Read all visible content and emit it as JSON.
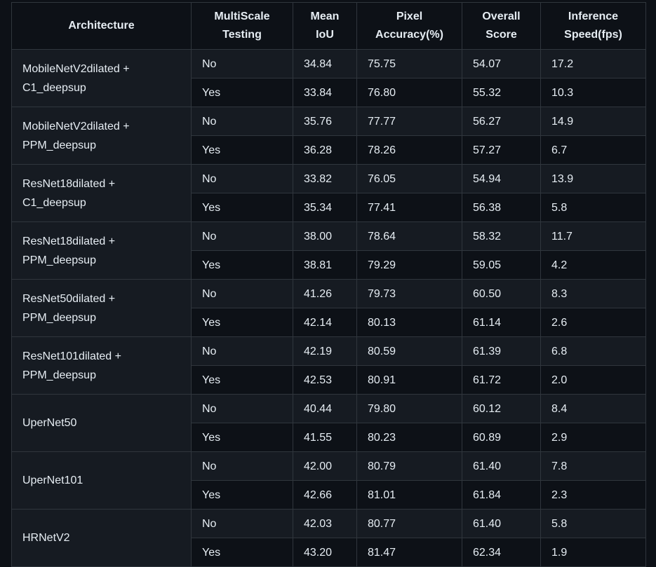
{
  "table": {
    "headers": [
      [
        "Architecture"
      ],
      [
        "MultiScale",
        "Testing"
      ],
      [
        "Mean",
        "IoU"
      ],
      [
        "Pixel",
        "Accuracy(%)"
      ],
      [
        "Overall",
        "Score"
      ],
      [
        "Inference",
        "Speed(fps)"
      ]
    ],
    "groups": [
      {
        "architecture": [
          "MobileNetV2dilated +",
          "C1_deepsup"
        ],
        "rows": [
          {
            "multiscale": "No",
            "mean_iou": "34.84",
            "pixel_accuracy": "75.75",
            "overall_score": "54.07",
            "inference_speed": "17.2"
          },
          {
            "multiscale": "Yes",
            "mean_iou": "33.84",
            "pixel_accuracy": "76.80",
            "overall_score": "55.32",
            "inference_speed": "10.3"
          }
        ]
      },
      {
        "architecture": [
          "MobileNetV2dilated +",
          "PPM_deepsup"
        ],
        "rows": [
          {
            "multiscale": "No",
            "mean_iou": "35.76",
            "pixel_accuracy": "77.77",
            "overall_score": "56.27",
            "inference_speed": "14.9"
          },
          {
            "multiscale": "Yes",
            "mean_iou": "36.28",
            "pixel_accuracy": "78.26",
            "overall_score": "57.27",
            "inference_speed": "6.7"
          }
        ]
      },
      {
        "architecture": [
          "ResNet18dilated +",
          "C1_deepsup"
        ],
        "rows": [
          {
            "multiscale": "No",
            "mean_iou": "33.82",
            "pixel_accuracy": "76.05",
            "overall_score": "54.94",
            "inference_speed": "13.9"
          },
          {
            "multiscale": "Yes",
            "mean_iou": "35.34",
            "pixel_accuracy": "77.41",
            "overall_score": "56.38",
            "inference_speed": "5.8"
          }
        ]
      },
      {
        "architecture": [
          "ResNet18dilated +",
          "PPM_deepsup"
        ],
        "rows": [
          {
            "multiscale": "No",
            "mean_iou": "38.00",
            "pixel_accuracy": "78.64",
            "overall_score": "58.32",
            "inference_speed": "11.7"
          },
          {
            "multiscale": "Yes",
            "mean_iou": "38.81",
            "pixel_accuracy": "79.29",
            "overall_score": "59.05",
            "inference_speed": "4.2"
          }
        ]
      },
      {
        "architecture": [
          "ResNet50dilated +",
          "PPM_deepsup"
        ],
        "rows": [
          {
            "multiscale": "No",
            "mean_iou": "41.26",
            "pixel_accuracy": "79.73",
            "overall_score": "60.50",
            "inference_speed": "8.3"
          },
          {
            "multiscale": "Yes",
            "mean_iou": "42.14",
            "pixel_accuracy": "80.13",
            "overall_score": "61.14",
            "inference_speed": "2.6"
          }
        ]
      },
      {
        "architecture": [
          "ResNet101dilated +",
          "PPM_deepsup"
        ],
        "rows": [
          {
            "multiscale": "No",
            "mean_iou": "42.19",
            "pixel_accuracy": "80.59",
            "overall_score": "61.39",
            "inference_speed": "6.8"
          },
          {
            "multiscale": "Yes",
            "mean_iou": "42.53",
            "pixel_accuracy": "80.91",
            "overall_score": "61.72",
            "inference_speed": "2.0"
          }
        ]
      },
      {
        "architecture": [
          "UperNet50"
        ],
        "rows": [
          {
            "multiscale": "No",
            "mean_iou": "40.44",
            "pixel_accuracy": "79.80",
            "overall_score": "60.12",
            "inference_speed": "8.4"
          },
          {
            "multiscale": "Yes",
            "mean_iou": "41.55",
            "pixel_accuracy": "80.23",
            "overall_score": "60.89",
            "inference_speed": "2.9"
          }
        ]
      },
      {
        "architecture": [
          "UperNet101"
        ],
        "rows": [
          {
            "multiscale": "No",
            "mean_iou": "42.00",
            "pixel_accuracy": "80.79",
            "overall_score": "61.40",
            "inference_speed": "7.8"
          },
          {
            "multiscale": "Yes",
            "mean_iou": "42.66",
            "pixel_accuracy": "81.01",
            "overall_score": "61.84",
            "inference_speed": "2.3"
          }
        ]
      },
      {
        "architecture": [
          "HRNetV2"
        ],
        "rows": [
          {
            "multiscale": "No",
            "mean_iou": "42.03",
            "pixel_accuracy": "80.77",
            "overall_score": "61.40",
            "inference_speed": "5.8"
          },
          {
            "multiscale": "Yes",
            "mean_iou": "43.20",
            "pixel_accuracy": "81.47",
            "overall_score": "62.34",
            "inference_speed": "1.9"
          }
        ]
      }
    ]
  },
  "colors": {
    "background": "#0d1117",
    "row_alt": "#161b22",
    "border": "#30363d",
    "text": "#e6edf3"
  }
}
